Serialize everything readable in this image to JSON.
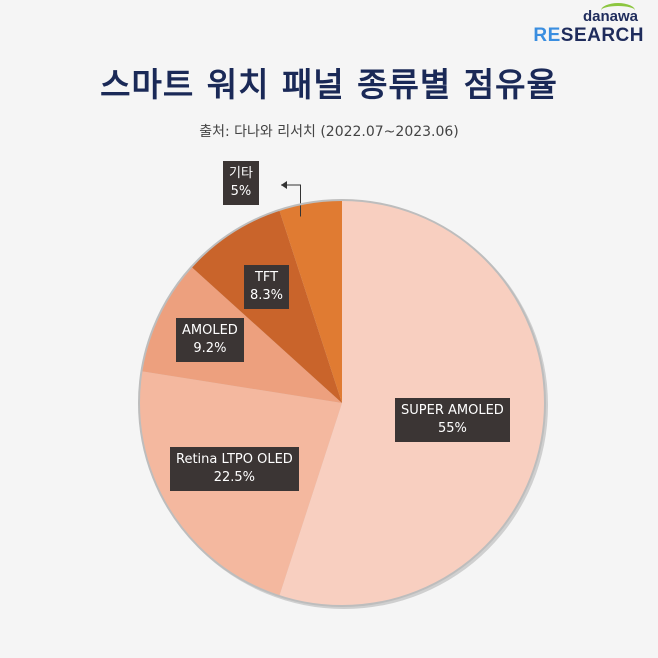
{
  "logo": {
    "top": "danawa",
    "bottom_accent": "RE",
    "bottom_rest": "SEARCH",
    "arc_color": "#8cc63f"
  },
  "header": {
    "title": "스마트 워치 패널 종류별 점유율",
    "source": "출처: 다나와 리서치 (2022.07~2023.06)"
  },
  "chart_data": {
    "type": "pie",
    "title": "스마트 워치 패널 종류별 점유율",
    "slices": [
      {
        "label": "SUPER AMOLED",
        "value": 55,
        "display": "55%",
        "color": "#f8cfc0"
      },
      {
        "label": "Retina LTPO OLED",
        "value": 22.5,
        "display": "22.5%",
        "color": "#f4b89f"
      },
      {
        "label": "AMOLED",
        "value": 9.2,
        "display": "9.2%",
        "color": "#eda07e"
      },
      {
        "label": "TFT",
        "value": 8.3,
        "display": "8.3%",
        "color": "#c9642b"
      },
      {
        "label": "기타",
        "value": 5,
        "display": "5%",
        "color": "#e07b32"
      }
    ],
    "start": "12 o'clock",
    "direction": "clockwise"
  }
}
